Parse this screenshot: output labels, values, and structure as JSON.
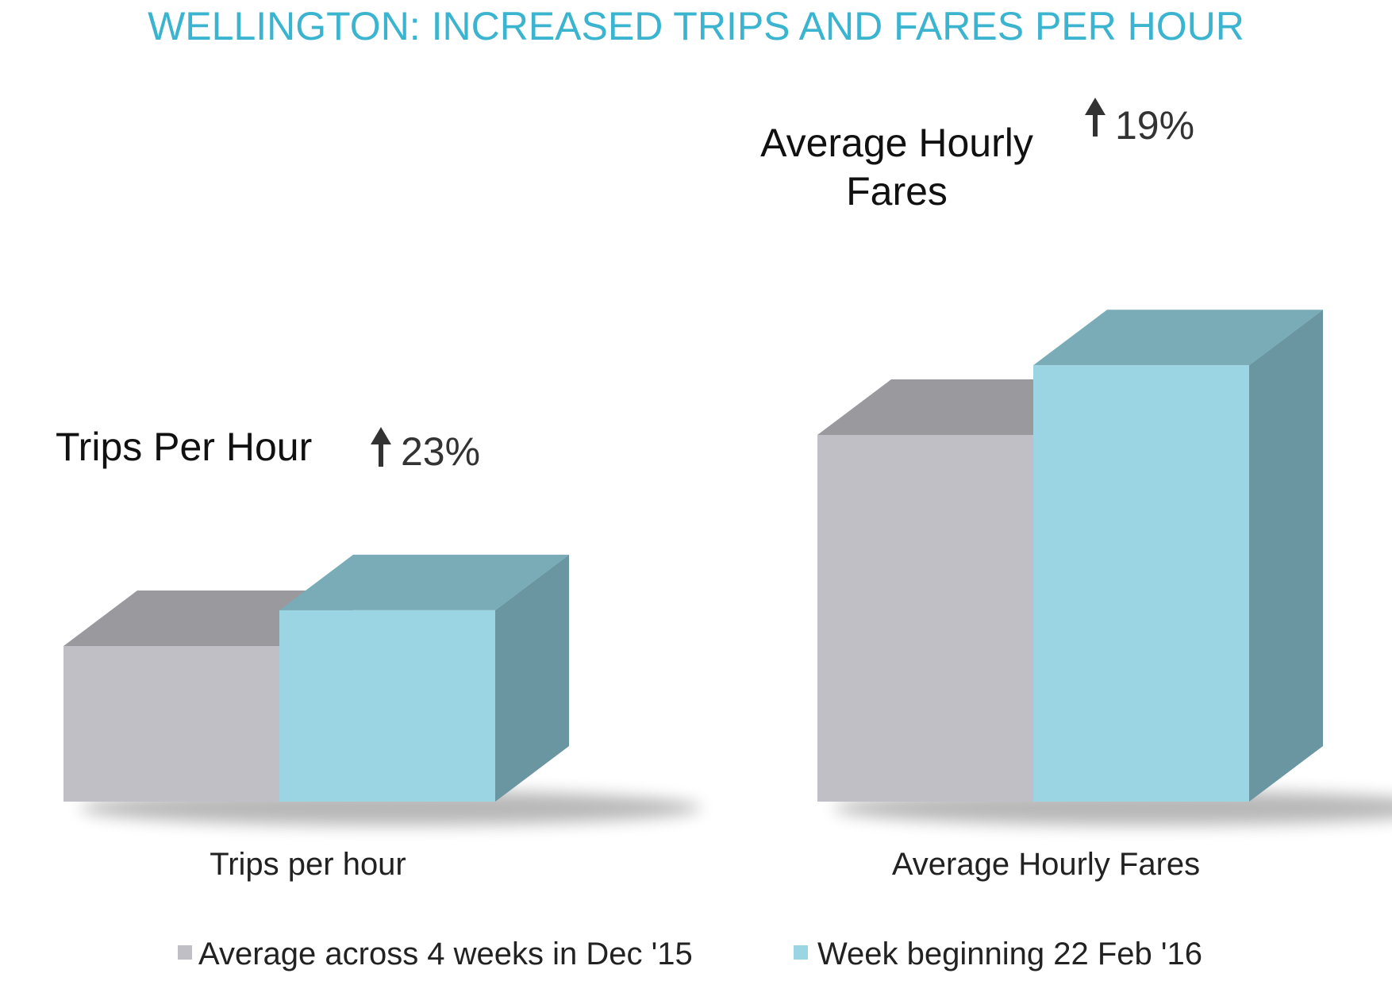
{
  "chart_data": {
    "type": "bar",
    "title": "WELLINGTON: INCREASED TRIPS AND FARES PER HOUR",
    "categories": [
      "Trips per hour",
      "Average Hourly Fares"
    ],
    "series": [
      {
        "name": "Average across 4 weeks in Dec '15",
        "values": [
          1.0,
          1.0
        ]
      },
      {
        "name": "Week beginning 22 Feb '16",
        "values": [
          1.23,
          1.19
        ]
      }
    ],
    "annotations": [
      {
        "label": "Trips Per Hour",
        "change": "23%",
        "direction": "up"
      },
      {
        "label": "Average Hourly Fares",
        "change": "19%",
        "direction": "up"
      }
    ],
    "grid": false,
    "legend": "bottom",
    "colors": {
      "title": "#3bb4d0",
      "series_0": "#c0bfc5",
      "series_0_top": "#9a999e",
      "series_1": "#9bd5e4",
      "series_1_top": "#7aacb8",
      "series_1_side": "#6a96a2",
      "text": "#111111",
      "change_text": "#333333"
    }
  }
}
